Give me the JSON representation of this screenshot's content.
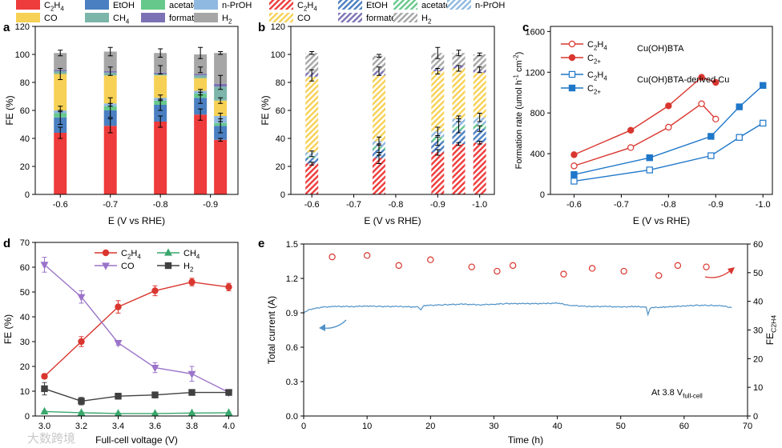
{
  "colors": {
    "C2H4": "#ee3b3b",
    "EtOH": "#4a7fc1",
    "acetate": "#66c98b",
    "nPrOH": "#8fb9e0",
    "CO": "#f7d155",
    "CH4": "#7cb5a9",
    "formate": "#7b72b5",
    "H2": "#a6a6a6",
    "line_red": "#d9362f",
    "line_blue": "#1f77c9",
    "line_green": "#3aa76d",
    "line_purple": "#9b74c9",
    "line_dark": "#404040",
    "current_blue": "#4f91c6"
  },
  "watermark": "大数跨境",
  "chart_data": [
    {
      "panel": "a",
      "type": "bar",
      "stacked": true,
      "x": [
        -0.6,
        -0.7,
        -0.8,
        -0.88,
        -0.92
      ],
      "tick_labels": [
        "-0.6",
        "-0.7",
        "-0.8",
        "-0.9"
      ],
      "xlabel": "E (V vs RHE)",
      "ylabel": "FE (%)",
      "ylim": [
        0,
        120
      ],
      "yticks": [
        0,
        20,
        40,
        60,
        80,
        100,
        120
      ],
      "legend": {
        "placement": "top",
        "entries": [
          {
            "key": "C2H4",
            "base": "C",
            "sub": "2",
            "mid": "H",
            "sub2": "4"
          },
          {
            "key": "EtOH",
            "label": "EtOH"
          },
          {
            "key": "acetate",
            "label": "acetate"
          },
          {
            "key": "nPrOH",
            "label": "n-PrOH"
          },
          {
            "key": "CO",
            "label": "CO"
          },
          {
            "key": "CH4",
            "base": "CH",
            "sub": "4"
          },
          {
            "key": "formate",
            "label": "formate"
          },
          {
            "key": "H2",
            "base": "H",
            "sub": "2"
          }
        ]
      },
      "series": [
        {
          "key": "C2H4",
          "values": [
            44,
            49,
            52,
            57,
            39
          ]
        },
        {
          "key": "EtOH",
          "values": [
            11,
            11,
            12,
            12,
            10
          ]
        },
        {
          "key": "acetate",
          "values": [
            3,
            3,
            3,
            3,
            2
          ]
        },
        {
          "key": "nPrOH",
          "values": [
            2,
            2,
            2,
            2,
            5
          ]
        },
        {
          "key": "CO",
          "values": [
            26,
            20,
            16,
            9,
            11
          ]
        },
        {
          "key": "CH4",
          "values": [
            2,
            2,
            1,
            2,
            10
          ]
        },
        {
          "key": "formate",
          "values": [
            1,
            1,
            1,
            1,
            2
          ]
        },
        {
          "key": "H2",
          "values": [
            12,
            14,
            14,
            14,
            22
          ]
        }
      ],
      "error_tops": [
        [
          44,
          4
        ],
        [
          55,
          5
        ],
        [
          61,
          2
        ],
        [
          86,
          4
        ],
        [
          101,
          2
        ],
        [
          49,
          5
        ],
        [
          60,
          5
        ],
        [
          66,
          3
        ],
        [
          88,
          3
        ],
        [
          102,
          3
        ],
        [
          52,
          4
        ],
        [
          64,
          4
        ],
        [
          69,
          2
        ],
        [
          89,
          3
        ],
        [
          101,
          3
        ],
        [
          57,
          4
        ],
        [
          69,
          4
        ],
        [
          73,
          2
        ],
        [
          89,
          2
        ],
        [
          101,
          4
        ],
        [
          39,
          1
        ],
        [
          49,
          5
        ],
        [
          55,
          3
        ],
        [
          67,
          2
        ],
        [
          80,
          5
        ],
        [
          101,
          1
        ]
      ]
    },
    {
      "panel": "b",
      "type": "bar",
      "stacked": true,
      "hatched": true,
      "x": [
        -0.6,
        -0.76,
        -0.9,
        -0.95,
        -1.0
      ],
      "tick_labels": [
        "-0.6",
        "-0.7",
        "-0.8",
        "-0.9",
        "-1.0"
      ],
      "tick_positions": [
        -0.6,
        -0.7,
        -0.8,
        -0.9,
        -1.0
      ],
      "xlabel": "E (V vs RHE)",
      "ylabel": "FE (%)",
      "ylim": [
        0,
        120
      ],
      "yticks": [
        0,
        20,
        40,
        60,
        80,
        100,
        120
      ],
      "legend": {
        "placement": "top",
        "entries": [
          {
            "key": "C2H4",
            "base": "C",
            "sub": "2",
            "mid": "H",
            "sub2": "4"
          },
          {
            "key": "EtOH",
            "label": "EtOH"
          },
          {
            "key": "acetate",
            "label": "acetate"
          },
          {
            "key": "nPrOH",
            "label": "n-PrOH"
          },
          {
            "key": "CO",
            "label": "CO"
          },
          {
            "key": "formate",
            "label": "formate"
          },
          {
            "key": "H2",
            "base": "H",
            "sub": "2"
          }
        ]
      },
      "series": [
        {
          "key": "C2H4",
          "values": [
            22,
            26,
            30,
            36,
            37
          ]
        },
        {
          "key": "EtOH",
          "values": [
            4,
            6,
            8,
            10,
            10
          ]
        },
        {
          "key": "acetate",
          "values": [
            1,
            2,
            3,
            3,
            3
          ]
        },
        {
          "key": "nPrOH",
          "values": [
            3,
            4,
            4,
            5,
            5
          ]
        },
        {
          "key": "CO",
          "values": [
            54,
            47,
            43,
            36,
            32
          ]
        },
        {
          "key": "formate",
          "values": [
            3,
            3,
            2,
            2,
            2
          ]
        },
        {
          "key": "H2",
          "values": [
            14,
            11,
            11,
            9,
            11
          ]
        }
      ],
      "error_tops": [
        [
          22,
          1
        ],
        [
          29,
          2
        ],
        [
          85,
          4
        ],
        [
          101,
          1
        ],
        [
          26,
          4
        ],
        [
          32,
          4
        ],
        [
          38,
          3
        ],
        [
          88,
          3
        ],
        [
          99,
          1
        ],
        [
          30,
          2
        ],
        [
          38,
          3
        ],
        [
          45,
          3
        ],
        [
          88,
          2
        ],
        [
          101,
          4
        ],
        [
          36,
          1
        ],
        [
          49,
          5
        ],
        [
          54,
          2
        ],
        [
          90,
          2
        ],
        [
          101,
          2
        ],
        [
          37,
          1
        ],
        [
          47,
          2
        ],
        [
          55,
          3
        ],
        [
          89,
          2
        ],
        [
          100,
          1
        ]
      ]
    },
    {
      "panel": "c",
      "type": "line",
      "xlabel": "E (V vs RHE)",
      "ylabel_parts": {
        "main": "Formation rate (umol h",
        "sup1": "-1",
        "mid": " cm",
        "sup2": "-2",
        "end": ")"
      },
      "xlim": [
        -0.55,
        -1.02
      ],
      "ylim": [
        0,
        1650
      ],
      "xticks": [
        -0.6,
        -0.7,
        -0.8,
        -0.9,
        -1.0
      ],
      "xtick_labels": [
        "-0.6",
        "-0.7",
        "-0.8",
        "-0.9",
        "-1.0"
      ],
      "yticks": [
        0,
        400,
        800,
        1200,
        1600
      ],
      "legend": {
        "placement": "top-left",
        "group1": "Cu(OH)BTA",
        "group2": "Cu(OH)BTA-derived Cu",
        "c2h4_base": "C",
        "c2h4_sub": "2",
        "c2h4_mid": "H",
        "c2h4_sub2": "4",
        "c2plus_base": "C",
        "c2plus_sub": "2+"
      },
      "series": [
        {
          "name": "C2H4",
          "group": "Cu(OH)BTA",
          "color": "#d9362f",
          "filled": false,
          "marker": "circle",
          "x": [
            -0.6,
            -0.72,
            -0.8,
            -0.87,
            -0.9
          ],
          "y": [
            280,
            460,
            660,
            890,
            740
          ]
        },
        {
          "name": "C2+",
          "group": "Cu(OH)BTA",
          "color": "#d9362f",
          "filled": true,
          "marker": "circle",
          "x": [
            -0.6,
            -0.72,
            -0.8,
            -0.87,
            -0.9
          ],
          "y": [
            390,
            630,
            870,
            1150,
            1100
          ]
        },
        {
          "name": "C2H4",
          "group": "Cu(OH)BTA-derived Cu",
          "color": "#1f77c9",
          "filled": false,
          "marker": "square",
          "x": [
            -0.6,
            -0.76,
            -0.89,
            -0.95,
            -1.0
          ],
          "y": [
            130,
            240,
            380,
            560,
            700
          ]
        },
        {
          "name": "C2+",
          "group": "Cu(OH)BTA-derived Cu",
          "color": "#1f77c9",
          "filled": true,
          "marker": "square",
          "x": [
            -0.6,
            -0.76,
            -0.89,
            -0.95,
            -1.0
          ],
          "y": [
            195,
            360,
            570,
            860,
            1070
          ]
        }
      ]
    },
    {
      "panel": "d",
      "type": "line",
      "xlabel": "Full-cell voltage (V)",
      "ylabel": "FE (%)",
      "xlim": [
        2.95,
        4.05
      ],
      "ylim": [
        0,
        70
      ],
      "xticks": [
        3.0,
        3.2,
        3.4,
        3.6,
        3.8,
        4.0
      ],
      "xtick_labels": [
        "3.0",
        "3.2",
        "3.4",
        "3.6",
        "3.8",
        "4.0"
      ],
      "yticks": [
        0,
        10,
        20,
        30,
        40,
        50,
        60,
        70
      ],
      "legend": {
        "placement": "top",
        "entries": [
          {
            "key": "C2H4",
            "base": "C",
            "sub": "2",
            "mid": "H",
            "sub2": "4",
            "marker": "circle",
            "color": "#d9362f"
          },
          {
            "key": "CH4",
            "base": "CH",
            "sub": "4",
            "marker": "triangle-up",
            "color": "#3aa76d"
          },
          {
            "key": "CO",
            "label": "CO",
            "marker": "triangle-down",
            "color": "#9b74c9"
          },
          {
            "key": "H2",
            "base": "H",
            "sub": "2",
            "marker": "square",
            "color": "#404040"
          }
        ]
      },
      "x": [
        3.0,
        3.2,
        3.4,
        3.6,
        3.8,
        4.0
      ],
      "series": [
        {
          "key": "C2H4",
          "y": [
            16,
            30,
            44,
            50.5,
            54,
            52
          ],
          "err": [
            1,
            2,
            2.5,
            2,
            1.5,
            1.5
          ]
        },
        {
          "key": "CH4",
          "y": [
            1.8,
            1.3,
            1.0,
            1.0,
            1.2,
            1.3
          ],
          "err": [
            0.3,
            0.3,
            0.2,
            0.2,
            0.2,
            0.2
          ]
        },
        {
          "key": "CO",
          "y": [
            61,
            48,
            29.5,
            19.5,
            17,
            9.5
          ],
          "err": [
            3,
            2.5,
            1,
            2,
            3,
            1
          ]
        },
        {
          "key": "H2",
          "y": [
            11,
            6,
            8,
            8.5,
            9.5,
            9.5
          ],
          "err": [
            2.5,
            1.5,
            1.2,
            1.2,
            0.6,
            0.6
          ]
        }
      ]
    },
    {
      "panel": "e",
      "type": "line",
      "xlabel": "Time (h)",
      "ylabel_left": "Total current (A)",
      "ylabel_right_base": "FE",
      "ylabel_right_sub": "C2H4",
      "xlim": [
        0,
        70
      ],
      "ylim_left": [
        0,
        1.5
      ],
      "ylim_right": [
        0,
        60
      ],
      "xticks": [
        0,
        10,
        20,
        30,
        40,
        50,
        60,
        70
      ],
      "yticks_left": [
        0.0,
        0.3,
        0.6,
        0.9,
        1.2,
        1.5
      ],
      "ytick_labels_left": [
        "0.0",
        "0.3",
        "0.6",
        "0.9",
        "1.2",
        "1.5"
      ],
      "yticks_right": [
        0,
        10,
        20,
        30,
        40,
        50,
        60
      ],
      "annotation_base": "At 3.8 V",
      "annotation_sub": "full-cell",
      "current": {
        "x": [
          0,
          1,
          2,
          3,
          5,
          8,
          10,
          12,
          15,
          18,
          18.5,
          19,
          20,
          22,
          25,
          28,
          30,
          32,
          35,
          38,
          40,
          42,
          45,
          48,
          50,
          52,
          54,
          54.3,
          54.6,
          55,
          57,
          60,
          62,
          64,
          66,
          67.5
        ],
        "y": [
          0.9,
          0.93,
          0.94,
          0.95,
          0.955,
          0.955,
          0.96,
          0.955,
          0.955,
          0.95,
          0.93,
          0.965,
          0.965,
          0.97,
          0.975,
          0.97,
          0.975,
          0.98,
          0.98,
          0.98,
          0.985,
          0.965,
          0.955,
          0.955,
          0.95,
          0.955,
          0.95,
          0.88,
          0.935,
          0.945,
          0.95,
          0.96,
          0.965,
          0.965,
          0.96,
          0.945
        ]
      },
      "fe": {
        "x": [
          4.5,
          10,
          15,
          20,
          26.5,
          30.5,
          33,
          41,
          45.5,
          50.5,
          56,
          59,
          63.5
        ],
        "y": [
          55.5,
          56,
          52.5,
          54.5,
          52,
          50.5,
          52.5,
          49.5,
          51.5,
          50.5,
          49,
          52.5,
          52
        ]
      }
    }
  ]
}
